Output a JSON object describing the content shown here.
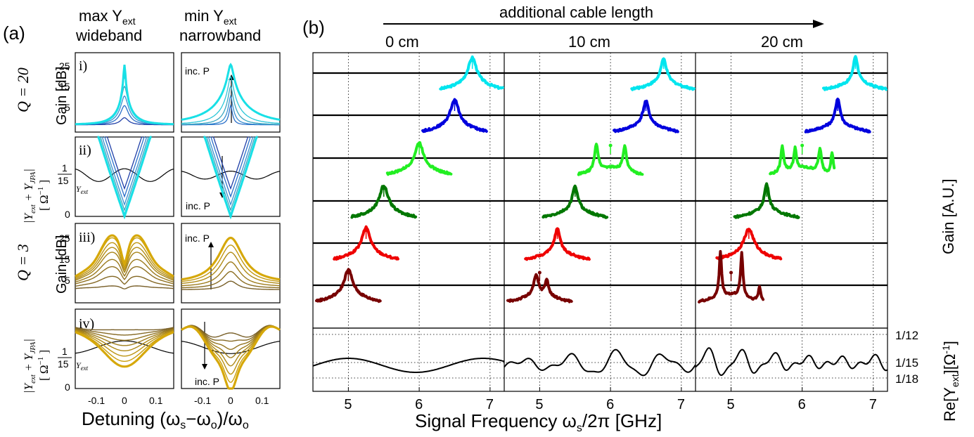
{
  "panel_a": {
    "label": "(a)",
    "col_max": "max Y",
    "col_max_sub": "ext",
    "col_max_2": "wideband",
    "col_min": "min Y",
    "col_min_sub": "ext",
    "col_min_2": "narrowband",
    "q20": "Q = 20",
    "q3": "Q = 3",
    "roman": [
      "i)",
      "ii)",
      "iii)",
      "iv)"
    ],
    "gain_ylabel": "Gain [dB]",
    "adm_ylabel": "|Y",
    "adm_ylabel_sub1": "ext",
    "adm_ylabel_plus": " + Y",
    "adm_ylabel_sub2": "JPA",
    "adm_ylabel_end": "|",
    "adm_unit": "[ Ω",
    "adm_unit_sup": "−1",
    "adm_unit_end": " ]",
    "inc_p": "inc. P",
    "yext_label": "Y",
    "yext_sub": "ext",
    "gain_ticks": [
      "25",
      "15",
      "5"
    ],
    "adm_ticks": [
      "1",
      "15",
      "0"
    ],
    "x_ticks": [
      "-0.1",
      "0",
      "0.1"
    ],
    "xlabel": "Detuning (ω",
    "xlabel_s": "s",
    "xlabel_mid": "−ω",
    "xlabel_o": "o",
    "xlabel_end": ")/ω",
    "xlabel_o2": "o"
  },
  "panel_b": {
    "label": "(b)",
    "arrow_label": "additional cable length",
    "col_titles": [
      "0 cm",
      "10 cm",
      "20 cm"
    ],
    "x_ticks": [
      "5",
      "6",
      "7"
    ],
    "xlabel": "Signal Frequency ω",
    "xlabel_sub": "s",
    "xlabel_end": "/2π [GHz]",
    "gain_ylabel": "Gain [A.U.]",
    "re_ylabel": "Re[Y",
    "re_ylabel_sub": "ext",
    "re_ylabel_end": "][Ω",
    "re_ylabel_sup": "-1",
    "re_ylabel_close": "]",
    "re_ticks": [
      "1/12",
      "1/15",
      "1/18"
    ]
  },
  "chart_data": [
    {
      "type": "line",
      "panel": "(a) i) max Y_ext wideband, Q = 20",
      "ylabel": "Gain [dB]",
      "xlabel": "Detuning (ω_s−ω_o)/ω_o",
      "x_range": [
        -0.2,
        0.2
      ],
      "ylim": [
        -3,
        30
      ],
      "peak_gains_db": [
        3,
        8,
        12,
        16,
        20,
        25
      ]
    },
    {
      "type": "line",
      "panel": "(a) i) min Y_ext narrowband, Q = 20",
      "ylabel": "Gain [dB]",
      "x_range": [
        -0.2,
        0.2
      ],
      "ylim": [
        -3,
        30
      ],
      "peak_gains_db": [
        8,
        12,
        16,
        20,
        25
      ]
    },
    {
      "type": "line",
      "panel": "(a) ii) |Y_ext + Y_JPA|, Q = 20",
      "ylabel": "|Y_ext + Y_JPA| [Ω^-1]",
      "yticks": [
        "1/15",
        "0"
      ],
      "x_range": [
        -0.2,
        0.2
      ]
    },
    {
      "type": "line",
      "panel": "(a) iii) max Y_ext wideband, Q = 3",
      "ylabel": "Gain [dB]",
      "x_range": [
        -0.2,
        0.2
      ],
      "ylim": [
        -3,
        30
      ],
      "peak_gains_db": [
        4,
        8,
        12,
        15,
        18,
        20,
        22,
        24,
        25
      ]
    },
    {
      "type": "line",
      "panel": "(a) iii) min Y_ext narrowband, Q = 3",
      "ylabel": "Gain [dB]",
      "x_range": [
        -0.2,
        0.2
      ],
      "ylim": [
        -3,
        30
      ],
      "peak_gains_db": [
        6,
        10,
        14,
        18,
        21,
        24
      ]
    },
    {
      "type": "line",
      "panel": "(a) iv) |Y_ext + Y_JPA|, Q = 3",
      "ylabel": "|Y_ext + Y_JPA| [Ω^-1]",
      "x_range": [
        -0.2,
        0.2
      ]
    },
    {
      "type": "line",
      "panel": "(b) measured gain traces vs signal frequency",
      "xlabel": "Signal Frequency ω_s/2π [GHz]",
      "ylabel": "Gain [A.U.]",
      "columns": [
        "0 cm",
        "10 cm",
        "20 cm"
      ],
      "x_range": [
        4.5,
        7.2
      ],
      "series": [
        {
          "color": "#00e5ee",
          "pump_center_ghz": 6.75
        },
        {
          "color": "#0000dd",
          "pump_center_ghz": 6.5
        },
        {
          "color": "#22ee22",
          "pump_center_ghz": 6.0
        },
        {
          "color": "#007700",
          "pump_center_ghz": 5.5
        },
        {
          "color": "#ee0000",
          "pump_center_ghz": 5.25
        },
        {
          "color": "#770000",
          "pump_center_ghz": 5.0
        }
      ]
    },
    {
      "type": "line",
      "panel": "(b) Re[Y_ext] vs signal frequency",
      "ylabel": "Re[Y_ext][Ω^-1]",
      "yticks": [
        "1/12",
        "1/15",
        "1/18"
      ],
      "columns": [
        "0 cm",
        "10 cm",
        "20 cm"
      ],
      "x_range": [
        4.5,
        7.2
      ]
    }
  ],
  "colors": {
    "cyan": "#00e5ee",
    "blue": "#0000dd",
    "lime": "#22ee22",
    "green": "#007700",
    "red": "#ee0000",
    "maroon": "#770000",
    "gold": "#cc9900",
    "q20_label": "#1f6fd0",
    "q3_label": "#8a6a00"
  }
}
